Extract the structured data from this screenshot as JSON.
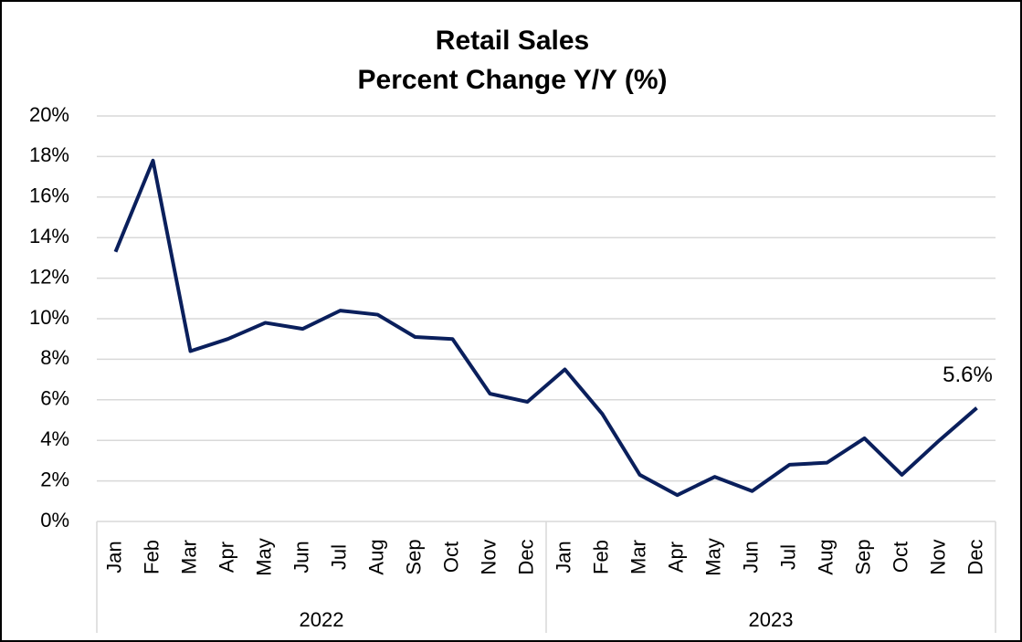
{
  "chart_data": {
    "type": "line",
    "title": "Retail Sales",
    "subtitle": "Percent Change Y/Y (%)",
    "categories": [
      "Jan",
      "Feb",
      "Mar",
      "Apr",
      "May",
      "Jun",
      "Jul",
      "Aug",
      "Sep",
      "Oct",
      "Nov",
      "Dec",
      "Jan",
      "Feb",
      "Mar",
      "Apr",
      "May",
      "Jun",
      "Jul",
      "Aug",
      "Sep",
      "Oct",
      "Nov",
      "Dec"
    ],
    "category_groups": [
      "2022",
      "2023"
    ],
    "series": [
      {
        "name": "Retail Sales",
        "color": "#0a1f5c",
        "values": [
          13.3,
          17.8,
          8.4,
          9.0,
          9.8,
          9.5,
          10.4,
          10.2,
          9.1,
          9.0,
          6.3,
          5.9,
          7.5,
          5.3,
          2.3,
          1.3,
          2.2,
          1.5,
          2.8,
          2.9,
          4.1,
          2.3,
          4.0,
          5.6
        ],
        "value_labels": [
          null,
          null,
          null,
          null,
          null,
          null,
          null,
          null,
          null,
          null,
          null,
          null,
          null,
          null,
          null,
          null,
          null,
          null,
          null,
          null,
          null,
          null,
          null,
          "5.6%"
        ]
      }
    ],
    "ylim": [
      0,
      20
    ],
    "yticks": [
      {
        "value": 0,
        "label": "0%"
      },
      {
        "value": 2,
        "label": "2%"
      },
      {
        "value": 4,
        "label": "4%"
      },
      {
        "value": 6,
        "label": "6%"
      },
      {
        "value": 8,
        "label": "8%"
      },
      {
        "value": 10,
        "label": "10%"
      },
      {
        "value": 12,
        "label": "12%"
      },
      {
        "value": 14,
        "label": "14%"
      },
      {
        "value": 16,
        "label": "16%"
      },
      {
        "value": 18,
        "label": "18%"
      },
      {
        "value": 20,
        "label": "20%"
      }
    ],
    "grid": true
  }
}
